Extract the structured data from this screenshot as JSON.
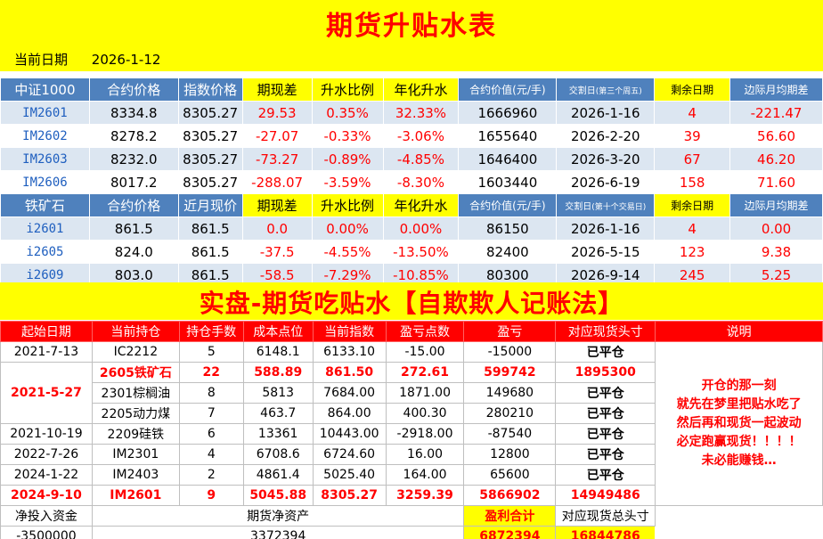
{
  "title": "期货升贴水表",
  "current_date": {
    "label": "当前日期",
    "value": "2026-1-12"
  },
  "csi_header": [
    "中证1000",
    "合约价格",
    "指数价格",
    "期现差",
    "升水比例",
    "年化升水",
    "合约价值(元/手)",
    "交割日",
    "(第三个周五)",
    "剩余日期",
    "边际月均期差"
  ],
  "csi_rows": [
    [
      "IM2601",
      "8334.8",
      "8305.27",
      "29.53",
      "0.35%",
      "32.33%",
      "1666960",
      "2026-1-16",
      "4",
      "-221.47"
    ],
    [
      "IM2602",
      "8278.2",
      "8305.27",
      "-27.07",
      "-0.33%",
      "-3.06%",
      "1655640",
      "2026-2-20",
      "39",
      "56.60"
    ],
    [
      "IM2603",
      "8232.0",
      "8305.27",
      "-73.27",
      "-0.89%",
      "-4.85%",
      "1646400",
      "2026-3-20",
      "67",
      "46.20"
    ],
    [
      "IM2606",
      "8017.2",
      "8305.27",
      "-288.07",
      "-3.59%",
      "-8.30%",
      "1603440",
      "2026-6-19",
      "158",
      "71.60"
    ]
  ],
  "iron_header": [
    "铁矿石",
    "合约价格",
    "近月现价",
    "期现差",
    "升水比例",
    "年化升水",
    "合约价值(元/手)",
    "交割日",
    "(第十个交易日)",
    "剩余日期",
    "边际月均期差"
  ],
  "iron_rows": [
    [
      "i2601",
      "861.5",
      "861.5",
      "0.0",
      "0.00%",
      "0.00%",
      "86150",
      "2026-1-16",
      "4",
      "0.00"
    ],
    [
      "i2605",
      "824.0",
      "861.5",
      "-37.5",
      "-4.55%",
      "-13.50%",
      "82400",
      "2026-5-15",
      "123",
      "9.38"
    ],
    [
      "i2609",
      "803.0",
      "861.5",
      "-58.5",
      "-7.29%",
      "-10.85%",
      "80300",
      "2026-9-14",
      "245",
      "5.25"
    ]
  ],
  "ledger_title": "实盘-期货吃贴水【自欺欺人记账法】",
  "ledger_header": [
    "起始日期",
    "当前持仓",
    "持仓手数",
    "成本点位",
    "当前指数",
    "盈亏点数",
    "盈亏",
    "对应现货头寸",
    "说明"
  ],
  "ledger_rows": [
    {
      "date": "2021-7-13",
      "pos": "IC2212",
      "lots": "5",
      "cost": "6148.1",
      "index": "6133.10",
      "pts": "-15.00",
      "pnl": "-15000",
      "spot": "已平仓"
    },
    {
      "date": "2021-5-27",
      "pos": "2605铁矿石",
      "lots": "22",
      "cost": "588.89",
      "index": "861.50",
      "pts": "272.61",
      "pnl": "599742",
      "spot": "1895300"
    },
    {
      "date": "",
      "pos": "2301棕榈油",
      "lots": "8",
      "cost": "5813",
      "index": "7684.00",
      "pts": "1871.00",
      "pnl": "149680",
      "spot": "已平仓"
    },
    {
      "date": "",
      "pos": "2205动力煤",
      "lots": "7",
      "cost": "463.7",
      "index": "864.00",
      "pts": "400.30",
      "pnl": "280210",
      "spot": "已平仓"
    },
    {
      "date": "2021-10-19",
      "pos": "2209硅铁",
      "lots": "6",
      "cost": "13361",
      "index": "10443.00",
      "pts": "-2918.00",
      "pnl": "-87540",
      "spot": "已平仓"
    },
    {
      "date": "2022-7-26",
      "pos": "IM2301",
      "lots": "4",
      "cost": "6708.6",
      "index": "6724.60",
      "pts": "16.00",
      "pnl": "12800",
      "spot": "已平仓"
    },
    {
      "date": "2024-1-22",
      "pos": "IM2403",
      "lots": "2",
      "cost": "4861.4",
      "index": "5025.40",
      "pts": "164.00",
      "pnl": "65600",
      "spot": "已平仓"
    },
    {
      "date": "2024-9-10",
      "pos": "IM2601",
      "lots": "9",
      "cost": "5045.88",
      "index": "8305.27",
      "pts": "3259.39",
      "pnl": "5866902",
      "spot": "14949486"
    }
  ],
  "note_lines": [
    "开仓的那一刻",
    "就先在梦里把贴水吃了",
    "然后再和现货一起波动",
    "必定跑赢现货！！！！",
    "未必能赚钱…"
  ],
  "summary": {
    "capital_label": "净投入资金",
    "capital_value": "-3500000",
    "equity_label": "期货净资产",
    "equity_value": "3372394",
    "profit_label": "盈利合计",
    "profit_value": "6872394",
    "spot_label": "对应现货总头寸",
    "spot_value": "16844786"
  }
}
